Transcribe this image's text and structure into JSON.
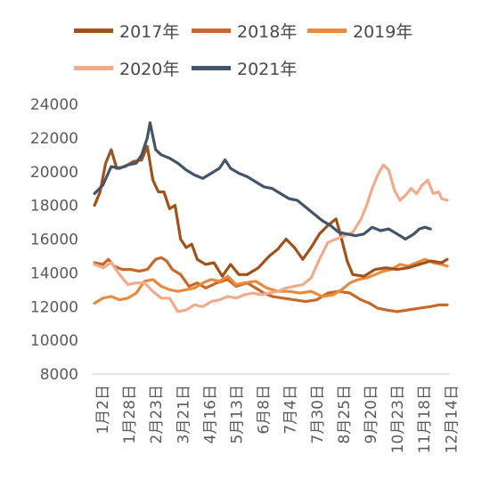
{
  "chart_data": {
    "type": "line",
    "title": "",
    "xlabel": "",
    "ylabel": "",
    "ylim": [
      8000,
      24000
    ],
    "yticks": [
      "24000",
      "22000",
      "20000",
      "18000",
      "16000",
      "14000",
      "12000",
      "10000",
      "8000"
    ],
    "xticks": [
      "1月2日",
      "1月28日",
      "2月23日",
      "3月21日",
      "4月16日",
      "5月13日",
      "6月8日",
      "7月4日",
      "7月30日",
      "8月25日",
      "9月20日",
      "10月23日",
      "11月18日",
      "12月14日"
    ],
    "x_unit": "day of year",
    "grid": false,
    "legend_position": "top",
    "series": [
      {
        "name": "2017年",
        "color": "#a0521d",
        "points": [
          [
            2,
            18000
          ],
          [
            6,
            18800
          ],
          [
            10,
            20500
          ],
          [
            14,
            21300
          ],
          [
            18,
            20200
          ],
          [
            24,
            20300
          ],
          [
            30,
            20600
          ],
          [
            36,
            20700
          ],
          [
            40,
            21500
          ],
          [
            44,
            19500
          ],
          [
            48,
            18800
          ],
          [
            52,
            18800
          ],
          [
            56,
            17800
          ],
          [
            60,
            18000
          ],
          [
            64,
            16000
          ],
          [
            68,
            15500
          ],
          [
            72,
            15700
          ],
          [
            76,
            14800
          ],
          [
            82,
            14500
          ],
          [
            88,
            14600
          ],
          [
            94,
            13800
          ],
          [
            100,
            14500
          ],
          [
            106,
            13900
          ],
          [
            112,
            13900
          ],
          [
            120,
            14300
          ],
          [
            128,
            15000
          ],
          [
            134,
            15400
          ],
          [
            140,
            16000
          ],
          [
            146,
            15500
          ],
          [
            152,
            14800
          ],
          [
            158,
            15500
          ],
          [
            164,
            16300
          ],
          [
            170,
            16800
          ],
          [
            176,
            17200
          ],
          [
            180,
            16000
          ],
          [
            184,
            14700
          ],
          [
            188,
            13900
          ],
          [
            196,
            13800
          ],
          [
            204,
            14200
          ],
          [
            212,
            14300
          ],
          [
            220,
            14200
          ],
          [
            228,
            14300
          ],
          [
            236,
            14500
          ],
          [
            244,
            14700
          ],
          [
            252,
            14600
          ],
          [
            256,
            14800
          ]
        ]
      },
      {
        "name": "2018年",
        "color": "#c8692a",
        "points": [
          [
            2,
            14600
          ],
          [
            8,
            14500
          ],
          [
            12,
            14800
          ],
          [
            16,
            14400
          ],
          [
            22,
            14200
          ],
          [
            28,
            14200
          ],
          [
            34,
            14100
          ],
          [
            40,
            14200
          ],
          [
            46,
            14800
          ],
          [
            50,
            14900
          ],
          [
            54,
            14700
          ],
          [
            58,
            14200
          ],
          [
            64,
            13900
          ],
          [
            70,
            13200
          ],
          [
            76,
            13400
          ],
          [
            82,
            13100
          ],
          [
            90,
            13400
          ],
          [
            98,
            13600
          ],
          [
            104,
            13200
          ],
          [
            112,
            13400
          ],
          [
            118,
            13100
          ],
          [
            124,
            12800
          ],
          [
            130,
            12600
          ],
          [
            138,
            12500
          ],
          [
            146,
            12400
          ],
          [
            154,
            12300
          ],
          [
            162,
            12400
          ],
          [
            170,
            12800
          ],
          [
            178,
            12900
          ],
          [
            186,
            12800
          ],
          [
            194,
            12400
          ],
          [
            200,
            12200
          ],
          [
            206,
            11900
          ],
          [
            212,
            11800
          ],
          [
            220,
            11700
          ],
          [
            228,
            11800
          ],
          [
            236,
            11900
          ],
          [
            244,
            12000
          ],
          [
            250,
            12100
          ],
          [
            256,
            12100
          ]
        ]
      },
      {
        "name": "2019年",
        "color": "#e98a3c",
        "points": [
          [
            2,
            12200
          ],
          [
            8,
            12500
          ],
          [
            14,
            12600
          ],
          [
            20,
            12400
          ],
          [
            26,
            12500
          ],
          [
            32,
            12800
          ],
          [
            38,
            13500
          ],
          [
            44,
            13600
          ],
          [
            50,
            13200
          ],
          [
            56,
            13000
          ],
          [
            62,
            12900
          ],
          [
            68,
            13000
          ],
          [
            74,
            13100
          ],
          [
            80,
            13400
          ],
          [
            86,
            13600
          ],
          [
            92,
            13500
          ],
          [
            98,
            13800
          ],
          [
            104,
            13300
          ],
          [
            110,
            13400
          ],
          [
            118,
            13500
          ],
          [
            126,
            13100
          ],
          [
            134,
            12900
          ],
          [
            142,
            12900
          ],
          [
            150,
            12800
          ],
          [
            158,
            12900
          ],
          [
            166,
            12600
          ],
          [
            174,
            12700
          ],
          [
            180,
            13000
          ],
          [
            186,
            13400
          ],
          [
            192,
            13600
          ],
          [
            198,
            13700
          ],
          [
            204,
            13900
          ],
          [
            210,
            14100
          ],
          [
            216,
            14200
          ],
          [
            222,
            14500
          ],
          [
            228,
            14400
          ],
          [
            234,
            14600
          ],
          [
            240,
            14800
          ],
          [
            246,
            14600
          ],
          [
            252,
            14500
          ],
          [
            256,
            14400
          ]
        ]
      },
      {
        "name": "2020年",
        "color": "#f0ab8e",
        "points": [
          [
            2,
            14500
          ],
          [
            8,
            14300
          ],
          [
            14,
            14600
          ],
          [
            20,
            13900
          ],
          [
            26,
            13300
          ],
          [
            32,
            13400
          ],
          [
            38,
            13400
          ],
          [
            44,
            12900
          ],
          [
            50,
            12500
          ],
          [
            56,
            12500
          ],
          [
            62,
            11700
          ],
          [
            68,
            11800
          ],
          [
            74,
            12100
          ],
          [
            80,
            12000
          ],
          [
            86,
            12300
          ],
          [
            92,
            12400
          ],
          [
            98,
            12600
          ],
          [
            104,
            12500
          ],
          [
            110,
            12700
          ],
          [
            116,
            12800
          ],
          [
            122,
            12700
          ],
          [
            128,
            12800
          ],
          [
            134,
            12900
          ],
          [
            140,
            13100
          ],
          [
            146,
            13200
          ],
          [
            152,
            13300
          ],
          [
            158,
            13700
          ],
          [
            164,
            14800
          ],
          [
            170,
            15800
          ],
          [
            176,
            16000
          ],
          [
            182,
            16200
          ],
          [
            188,
            16400
          ],
          [
            194,
            17200
          ],
          [
            198,
            18000
          ],
          [
            202,
            19000
          ],
          [
            206,
            19800
          ],
          [
            210,
            20400
          ],
          [
            214,
            20100
          ],
          [
            218,
            18900
          ],
          [
            222,
            18300
          ],
          [
            226,
            18600
          ],
          [
            230,
            19000
          ],
          [
            234,
            18700
          ],
          [
            238,
            19200
          ],
          [
            242,
            19500
          ],
          [
            246,
            18700
          ],
          [
            250,
            18800
          ],
          [
            252,
            18400
          ],
          [
            256,
            18300
          ]
        ]
      },
      {
        "name": "2021年",
        "color": "#44546a",
        "points": [
          [
            2,
            18700
          ],
          [
            8,
            19200
          ],
          [
            14,
            20300
          ],
          [
            20,
            20200
          ],
          [
            26,
            20400
          ],
          [
            32,
            20500
          ],
          [
            36,
            21000
          ],
          [
            40,
            22000
          ],
          [
            42,
            22900
          ],
          [
            46,
            21300
          ],
          [
            50,
            21000
          ],
          [
            56,
            20800
          ],
          [
            62,
            20500
          ],
          [
            68,
            20100
          ],
          [
            74,
            19800
          ],
          [
            80,
            19600
          ],
          [
            86,
            19900
          ],
          [
            92,
            20200
          ],
          [
            96,
            20700
          ],
          [
            100,
            20200
          ],
          [
            106,
            19900
          ],
          [
            112,
            19700
          ],
          [
            118,
            19400
          ],
          [
            124,
            19100
          ],
          [
            130,
            19000
          ],
          [
            136,
            18700
          ],
          [
            142,
            18400
          ],
          [
            148,
            18300
          ],
          [
            154,
            17900
          ],
          [
            160,
            17500
          ],
          [
            166,
            17100
          ],
          [
            172,
            16800
          ],
          [
            178,
            16400
          ],
          [
            184,
            16300
          ],
          [
            190,
            16200
          ],
          [
            196,
            16300
          ],
          [
            202,
            16700
          ],
          [
            208,
            16500
          ],
          [
            214,
            16600
          ],
          [
            220,
            16300
          ],
          [
            226,
            16000
          ],
          [
            232,
            16300
          ],
          [
            236,
            16600
          ],
          [
            240,
            16700
          ],
          [
            244,
            16600
          ]
        ]
      }
    ]
  }
}
